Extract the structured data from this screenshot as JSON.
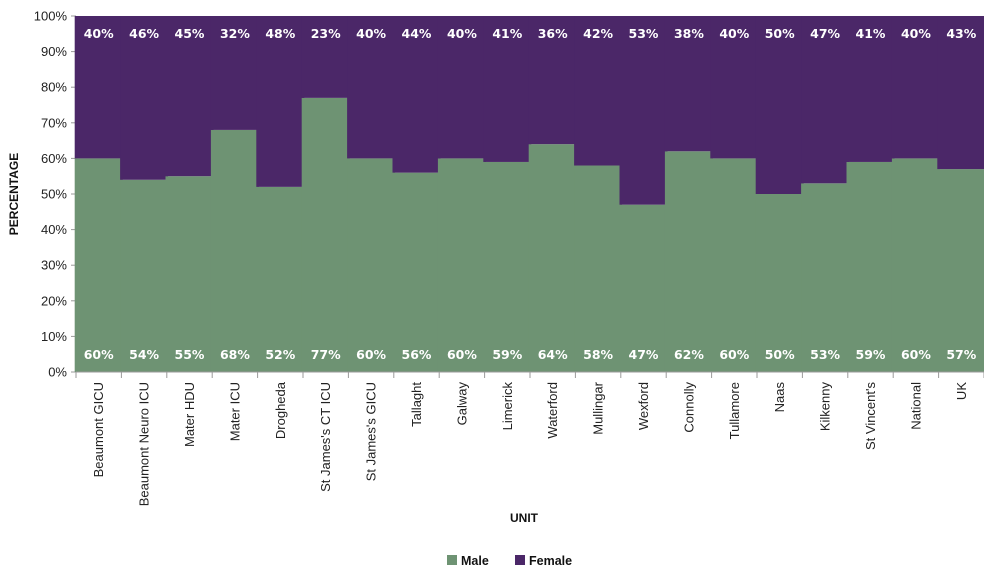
{
  "chart_data": {
    "type": "bar",
    "stacked": true,
    "percent": true,
    "categories": [
      "Beaumont GICU",
      "Beaumont Neuro ICU",
      "Mater HDU",
      "Mater ICU",
      "Drogheda",
      "St James's CT ICU",
      "St James's GICU",
      "Tallaght",
      "Galway",
      "Limerick",
      "Waterford",
      "Mullingar",
      "Wexford",
      "Connolly",
      "Tullamore",
      "Naas",
      "Kilkenny",
      "St Vincent's",
      "National",
      "UK"
    ],
    "series": [
      {
        "name": "Male",
        "color": "#6E9373",
        "values": [
          60,
          54,
          55,
          68,
          52,
          77,
          60,
          56,
          60,
          59,
          64,
          58,
          47,
          62,
          60,
          50,
          53,
          59,
          60,
          57
        ]
      },
      {
        "name": "Female",
        "color": "#4B2768",
        "values": [
          40,
          46,
          45,
          32,
          48,
          23,
          40,
          44,
          40,
          41,
          36,
          42,
          53,
          38,
          40,
          50,
          47,
          41,
          40,
          43
        ]
      }
    ],
    "ylim": [
      0,
      100
    ],
    "yticks": [
      "0%",
      "10%",
      "20%",
      "30%",
      "40%",
      "50%",
      "60%",
      "70%",
      "80%",
      "90%",
      "100%"
    ],
    "xlabel": "UNIT",
    "ylabel": "PERCENTAGE",
    "legend_position": "bottom",
    "grid": false
  }
}
